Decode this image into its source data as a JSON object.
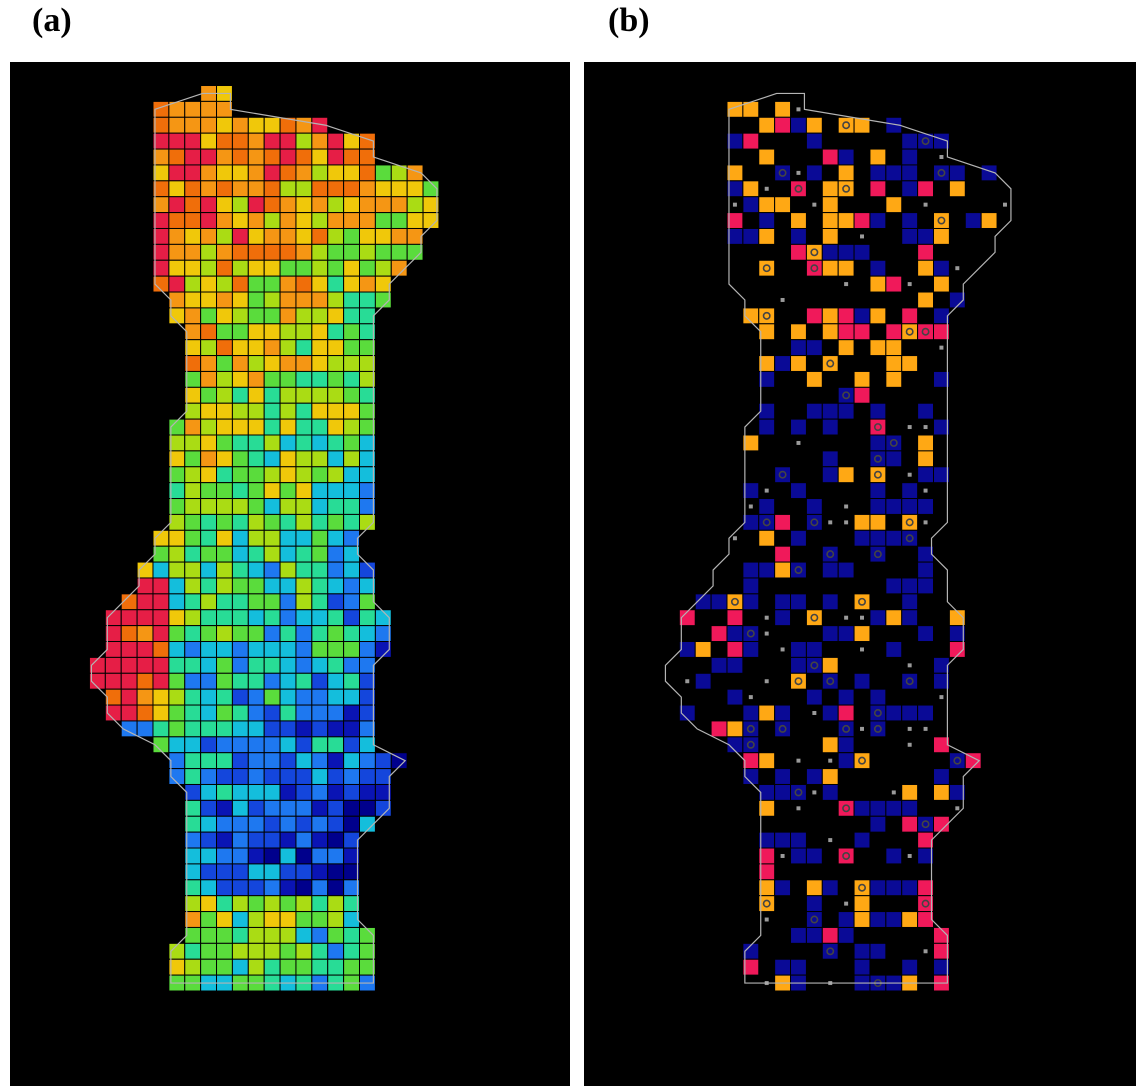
{
  "panels": [
    {
      "label": "(a)",
      "type": "continuous-heatmap-grid"
    },
    {
      "label": "(b)",
      "type": "categorical-grid-with-markers"
    }
  ],
  "colors": {
    "background": "#000000",
    "coastline": "#b4b4b4",
    "gridline": "#000000",
    "scale_a": [
      "#00008c",
      "#0a14b4",
      "#1446dc",
      "#1e78f0",
      "#14bedc",
      "#28dc96",
      "#5adc3c",
      "#aadc14",
      "#f0c80a",
      "#f59614",
      "#f06e0a",
      "#e61e46"
    ],
    "cat_b": {
      "blue": "#0a0a96",
      "orange": "#ffa814",
      "pink": "#f0195a",
      "light": "#1e78f0"
    }
  }
}
